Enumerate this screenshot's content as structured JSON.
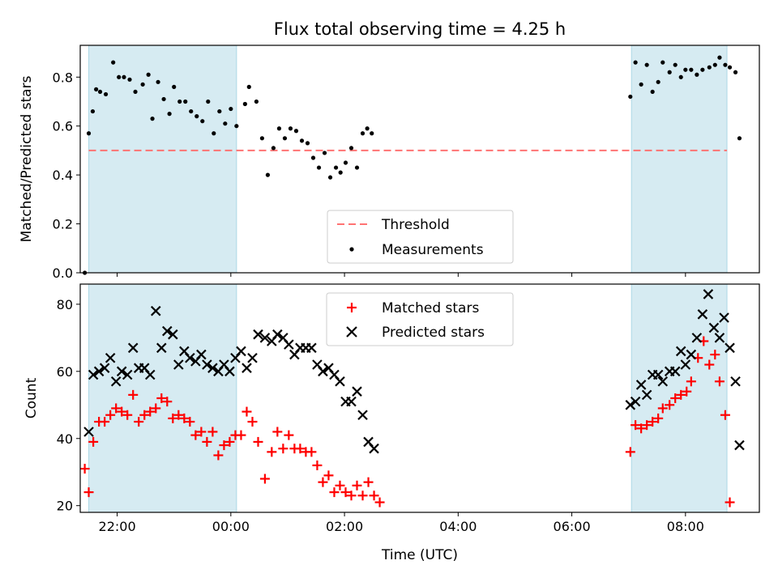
{
  "chart_data": {
    "title": "Flux total observing time = 4.25 h",
    "xlabel": "Time (UTC)",
    "xlim": [
      21.35,
      9.3
    ],
    "x_ticks": [
      "22:00",
      "00:00",
      "02:00",
      "04:00",
      "06:00",
      "08:00"
    ],
    "night_bands": [
      [
        21.5,
        0.1
      ],
      [
        7.05,
        8.73
      ]
    ],
    "panels": [
      {
        "type": "scatter",
        "ylabel": "Matched/Predicted stars",
        "ylim": [
          0.0,
          0.93
        ],
        "y_ticks": [
          "0.0",
          "0.2",
          "0.4",
          "0.6",
          "0.8"
        ],
        "threshold": 0.5,
        "legend": [
          "Threshold",
          "Measurements"
        ],
        "legend_position": "lower-center",
        "series": [
          {
            "name": "Measurements",
            "points": [
              [
                21.43,
                0.0
              ],
              [
                21.5,
                0.57
              ],
              [
                21.57,
                0.66
              ],
              [
                21.63,
                0.75
              ],
              [
                21.7,
                0.74
              ],
              [
                21.8,
                0.73
              ],
              [
                21.93,
                0.86
              ],
              [
                22.03,
                0.8
              ],
              [
                22.12,
                0.8
              ],
              [
                22.22,
                0.79
              ],
              [
                22.32,
                0.74
              ],
              [
                22.45,
                0.77
              ],
              [
                22.55,
                0.81
              ],
              [
                22.62,
                0.63
              ],
              [
                22.72,
                0.78
              ],
              [
                22.82,
                0.71
              ],
              [
                22.92,
                0.65
              ],
              [
                23.0,
                0.76
              ],
              [
                23.1,
                0.7
              ],
              [
                23.2,
                0.7
              ],
              [
                23.3,
                0.66
              ],
              [
                23.4,
                0.64
              ],
              [
                23.5,
                0.62
              ],
              [
                23.6,
                0.7
              ],
              [
                23.7,
                0.57
              ],
              [
                23.8,
                0.66
              ],
              [
                23.9,
                0.61
              ],
              [
                24.0,
                0.67
              ],
              [
                24.1,
                0.6
              ],
              [
                24.25,
                0.69
              ],
              [
                24.32,
                0.76
              ],
              [
                24.45,
                0.7
              ],
              [
                24.55,
                0.55
              ],
              [
                24.65,
                0.4
              ],
              [
                24.75,
                0.51
              ],
              [
                24.85,
                0.59
              ],
              [
                24.95,
                0.55
              ],
              [
                25.05,
                0.59
              ],
              [
                25.15,
                0.58
              ],
              [
                25.25,
                0.54
              ],
              [
                25.35,
                0.53
              ],
              [
                25.45,
                0.47
              ],
              [
                25.55,
                0.43
              ],
              [
                25.65,
                0.49
              ],
              [
                25.75,
                0.39
              ],
              [
                25.85,
                0.43
              ],
              [
                25.93,
                0.41
              ],
              [
                26.02,
                0.45
              ],
              [
                26.12,
                0.51
              ],
              [
                26.22,
                0.43
              ],
              [
                26.32,
                0.57
              ],
              [
                26.4,
                0.59
              ],
              [
                26.48,
                0.57
              ],
              [
                31.03,
                0.72
              ],
              [
                31.12,
                0.86
              ],
              [
                31.22,
                0.77
              ],
              [
                31.32,
                0.85
              ],
              [
                31.42,
                0.74
              ],
              [
                31.52,
                0.78
              ],
              [
                31.6,
                0.86
              ],
              [
                31.72,
                0.82
              ],
              [
                31.82,
                0.85
              ],
              [
                31.92,
                0.8
              ],
              [
                32.0,
                0.83
              ],
              [
                32.1,
                0.83
              ],
              [
                32.2,
                0.81
              ],
              [
                32.3,
                0.83
              ],
              [
                32.42,
                0.84
              ],
              [
                32.52,
                0.85
              ],
              [
                32.6,
                0.88
              ],
              [
                32.7,
                0.85
              ],
              [
                32.78,
                0.84
              ],
              [
                32.88,
                0.82
              ],
              [
                32.95,
                0.55
              ]
            ]
          }
        ]
      },
      {
        "type": "scatter",
        "ylabel": "Count",
        "ylim": [
          18,
          86
        ],
        "y_ticks": [
          "20",
          "40",
          "60",
          "80"
        ],
        "legend": [
          "Matched stars",
          "Predicted stars"
        ],
        "legend_position": "upper-center",
        "series": [
          {
            "name": "Matched stars",
            "color": "#ff0000",
            "points": [
              [
                21.43,
                31
              ],
              [
                21.5,
                24
              ],
              [
                21.58,
                39
              ],
              [
                21.68,
                45
              ],
              [
                21.78,
                45
              ],
              [
                21.88,
                47
              ],
              [
                21.98,
                49
              ],
              [
                22.08,
                48
              ],
              [
                22.18,
                47
              ],
              [
                22.28,
                53
              ],
              [
                22.38,
                45
              ],
              [
                22.48,
                47
              ],
              [
                22.58,
                48
              ],
              [
                22.68,
                49
              ],
              [
                22.78,
                52
              ],
              [
                22.88,
                51
              ],
              [
                22.98,
                46
              ],
              [
                23.08,
                47
              ],
              [
                23.18,
                46
              ],
              [
                23.28,
                45
              ],
              [
                23.38,
                41
              ],
              [
                23.48,
                42
              ],
              [
                23.58,
                39
              ],
              [
                23.68,
                42
              ],
              [
                23.78,
                35
              ],
              [
                23.88,
                38
              ],
              [
                23.98,
                39
              ],
              [
                24.08,
                41
              ],
              [
                24.18,
                41
              ],
              [
                24.28,
                48
              ],
              [
                24.38,
                45
              ],
              [
                24.48,
                39
              ],
              [
                24.6,
                28
              ],
              [
                24.72,
                36
              ],
              [
                24.82,
                42
              ],
              [
                24.92,
                37
              ],
              [
                25.02,
                41
              ],
              [
                25.12,
                37
              ],
              [
                25.22,
                37
              ],
              [
                25.32,
                36
              ],
              [
                25.42,
                36
              ],
              [
                25.52,
                32
              ],
              [
                25.62,
                27
              ],
              [
                25.72,
                29
              ],
              [
                25.82,
                24
              ],
              [
                25.92,
                26
              ],
              [
                26.02,
                24
              ],
              [
                26.12,
                23
              ],
              [
                26.22,
                26
              ],
              [
                26.32,
                23
              ],
              [
                26.42,
                27
              ],
              [
                26.52,
                23
              ],
              [
                26.62,
                21
              ],
              [
                31.03,
                36
              ],
              [
                31.12,
                44
              ],
              [
                31.22,
                43
              ],
              [
                31.32,
                44
              ],
              [
                31.42,
                45
              ],
              [
                31.52,
                46
              ],
              [
                31.6,
                49
              ],
              [
                31.72,
                50
              ],
              [
                31.82,
                52
              ],
              [
                31.92,
                53
              ],
              [
                32.02,
                54
              ],
              [
                32.1,
                57
              ],
              [
                32.22,
                64
              ],
              [
                32.32,
                69
              ],
              [
                32.42,
                62
              ],
              [
                32.52,
                65
              ],
              [
                32.6,
                57
              ],
              [
                32.7,
                47
              ],
              [
                32.78,
                21
              ]
            ]
          },
          {
            "name": "Predicted stars",
            "color": "#000000",
            "points": [
              [
                21.5,
                42
              ],
              [
                21.58,
                59
              ],
              [
                21.68,
                60
              ],
              [
                21.78,
                61
              ],
              [
                21.88,
                64
              ],
              [
                21.98,
                57
              ],
              [
                22.08,
                60
              ],
              [
                22.18,
                59
              ],
              [
                22.28,
                67
              ],
              [
                22.38,
                61
              ],
              [
                22.48,
                61
              ],
              [
                22.58,
                59
              ],
              [
                22.68,
                78
              ],
              [
                22.78,
                67
              ],
              [
                22.88,
                72
              ],
              [
                22.98,
                71
              ],
              [
                23.08,
                62
              ],
              [
                23.18,
                66
              ],
              [
                23.28,
                64
              ],
              [
                23.38,
                63
              ],
              [
                23.48,
                65
              ],
              [
                23.58,
                62
              ],
              [
                23.68,
                61
              ],
              [
                23.78,
                60
              ],
              [
                23.88,
                62
              ],
              [
                23.98,
                60
              ],
              [
                24.08,
                64
              ],
              [
                24.18,
                66
              ],
              [
                24.28,
                61
              ],
              [
                24.38,
                64
              ],
              [
                24.48,
                71
              ],
              [
                24.6,
                70
              ],
              [
                24.72,
                69
              ],
              [
                24.82,
                71
              ],
              [
                24.92,
                70
              ],
              [
                25.02,
                68
              ],
              [
                25.12,
                65
              ],
              [
                25.22,
                67
              ],
              [
                25.32,
                67
              ],
              [
                25.42,
                67
              ],
              [
                25.52,
                62
              ],
              [
                25.62,
                60
              ],
              [
                25.72,
                61
              ],
              [
                25.82,
                59
              ],
              [
                25.92,
                57
              ],
              [
                26.02,
                51
              ],
              [
                26.12,
                51
              ],
              [
                26.22,
                54
              ],
              [
                26.32,
                47
              ],
              [
                26.42,
                39
              ],
              [
                26.52,
                37
              ],
              [
                31.03,
                50
              ],
              [
                31.12,
                51
              ],
              [
                31.22,
                56
              ],
              [
                31.32,
                53
              ],
              [
                31.42,
                59
              ],
              [
                31.52,
                59
              ],
              [
                31.6,
                57
              ],
              [
                31.72,
                60
              ],
              [
                31.82,
                60
              ],
              [
                31.92,
                66
              ],
              [
                32.0,
                62
              ],
              [
                32.1,
                65
              ],
              [
                32.2,
                70
              ],
              [
                32.3,
                77
              ],
              [
                32.4,
                83
              ],
              [
                32.5,
                73
              ],
              [
                32.6,
                70
              ],
              [
                32.68,
                76
              ],
              [
                32.78,
                67
              ],
              [
                32.88,
                57
              ],
              [
                32.95,
                38
              ]
            ]
          }
        ]
      }
    ]
  }
}
